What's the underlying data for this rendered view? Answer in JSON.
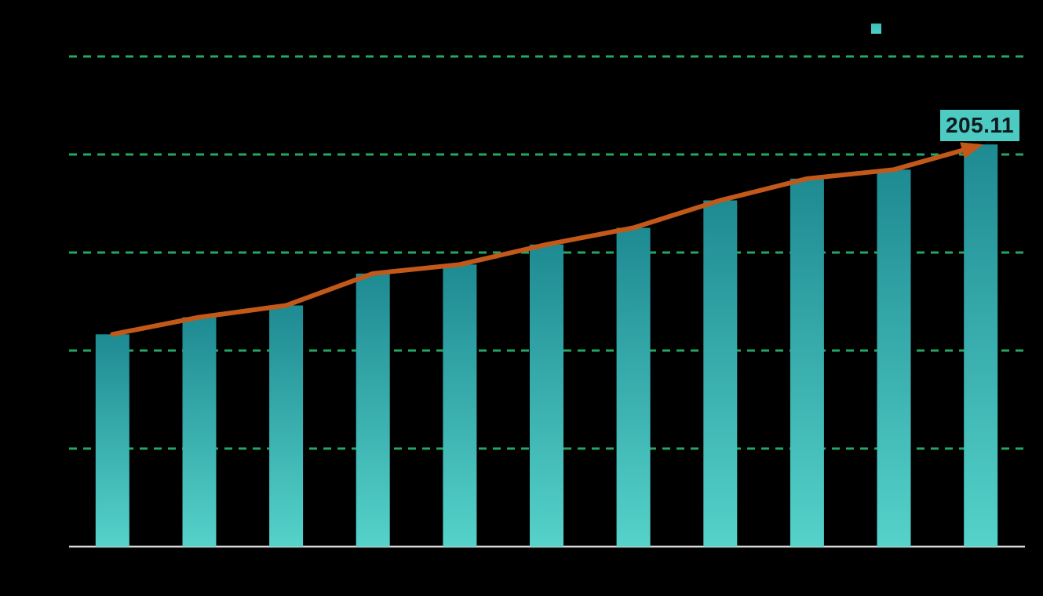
{
  "chart_data": {
    "type": "bar+line",
    "title": "",
    "xlabel": "",
    "ylabel": "",
    "points_count": 11,
    "series": [
      {
        "name": "value-bars",
        "type": "bar",
        "values": [
          108.3,
          117.0,
          123.0,
          139.3,
          143.9,
          154.1,
          162.6,
          176.6,
          187.7,
          192.3,
          205.11
        ]
      },
      {
        "name": "trend-line",
        "type": "line",
        "arrow_end": true,
        "values": [
          108.3,
          117.0,
          123.0,
          139.3,
          143.9,
          154.1,
          162.6,
          176.6,
          187.7,
          192.3,
          205.11
        ]
      }
    ],
    "ylim": [
      0,
      250
    ],
    "gridline_values": [
      50,
      100,
      150,
      200,
      250
    ],
    "grid": true,
    "grid_style": "dashed",
    "legend": {
      "position": "top-right",
      "marker": "square"
    },
    "annotation": {
      "text": "205.11",
      "target": "last-bar-top"
    },
    "colors": {
      "background": "#000000",
      "bar_top": "#1E8A92",
      "bar_bottom": "#55D2C9",
      "line": "#C2591B",
      "grid": "#23A763",
      "baseline": "#D9D9D9",
      "annotation_bg": "#4DCBC2",
      "annotation_text": "#0E1A1E",
      "legend_marker_top": "#3ABFB8",
      "legend_marker_bottom": "#52CDC5"
    }
  }
}
